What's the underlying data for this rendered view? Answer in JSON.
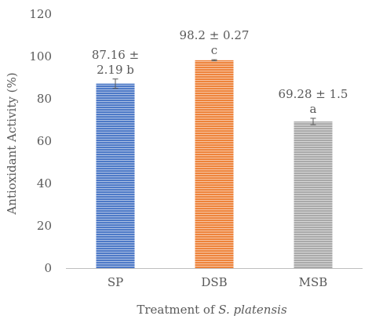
{
  "chart_data": {
    "type": "bar",
    "categories": [
      "SP",
      "DSB",
      "MSB"
    ],
    "values": [
      87.16,
      98.2,
      69.28
    ],
    "errors": [
      2.19,
      0.27,
      1.5
    ],
    "data_labels": [
      [
        "87.16 ±",
        "2.19 b"
      ],
      [
        "98.2 ± 0.27",
        "c"
      ],
      [
        "69.28 ± 1.5",
        "a"
      ]
    ],
    "colors": [
      "#4472c4",
      "#ed7d31",
      "#a5a5a5"
    ],
    "ylabel": "Antioxidant Activity (%)",
    "xlabel_prefix": "Treatment of ",
    "xlabel_italic": "S. platensis",
    "ylim": [
      0,
      120
    ],
    "yticks": [
      0,
      20,
      40,
      60,
      80,
      100,
      120
    ],
    "grid": false,
    "legend": "none"
  }
}
